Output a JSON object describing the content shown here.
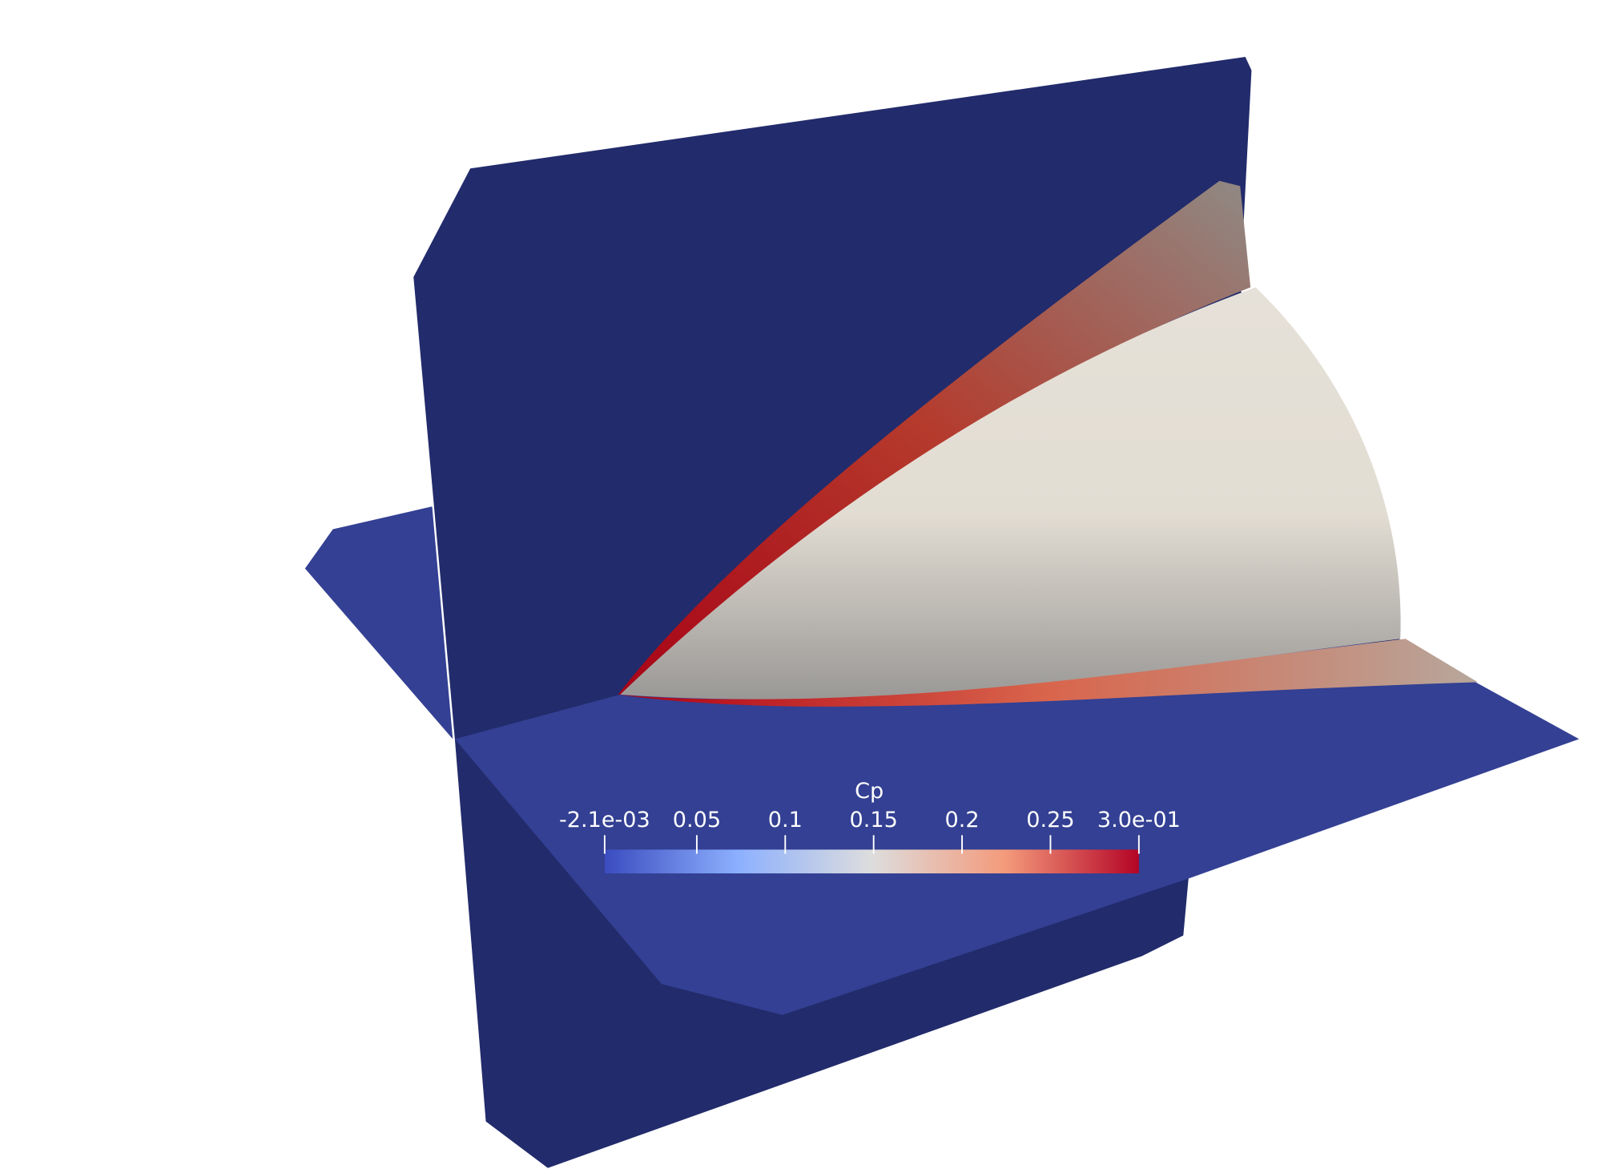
{
  "colorbar": {
    "title": "Cp",
    "range": [
      -0.0021,
      0.3
    ],
    "ticks": [
      {
        "value": -0.0021,
        "label": "-2.1e-03"
      },
      0.05,
      0.1,
      0.15,
      0.2,
      0.25,
      {
        "value": 0.3,
        "label": "3.0e-01"
      }
    ],
    "colors": [
      "#3b4cc0",
      "#8db0fe",
      "#dddddd",
      "#f49a7b",
      "#b40426"
    ]
  }
}
